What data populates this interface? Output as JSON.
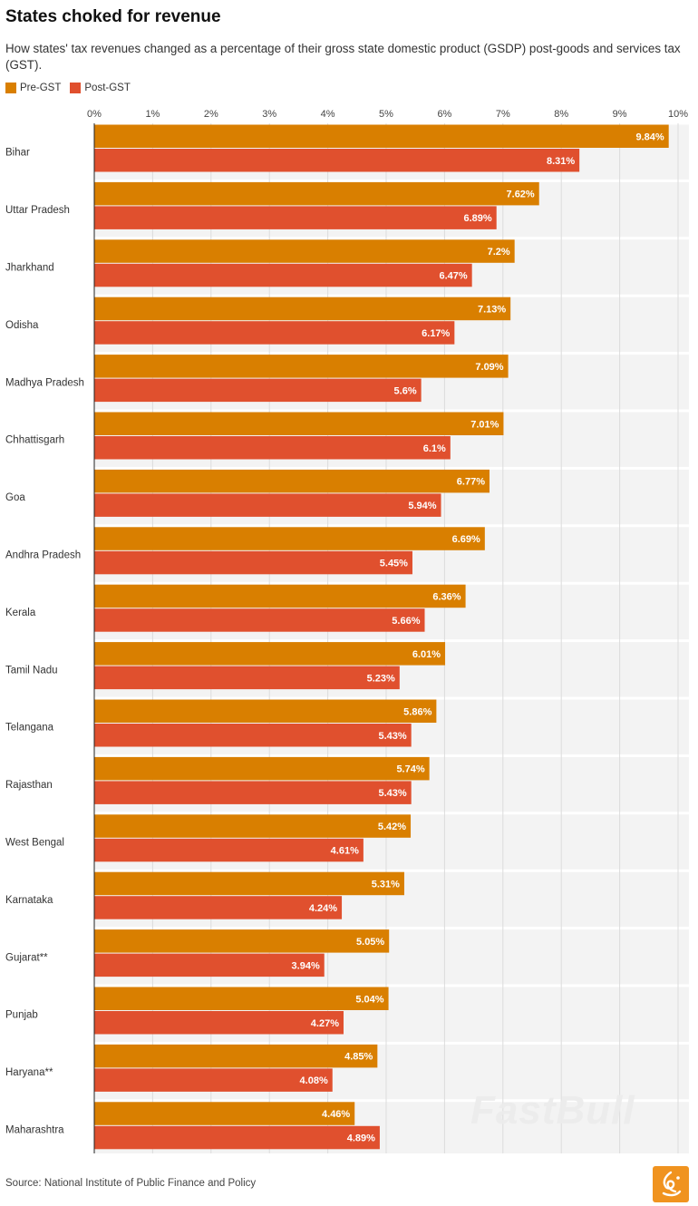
{
  "title": "States choked for revenue",
  "subtitle": "How states' tax revenues changed as a percentage of their gross state domestic product (GSDP) post-goods and services tax (GST).",
  "source": "Source: National Institute of Public Finance and Policy",
  "watermark": "FastBull",
  "colors": {
    "pre": "#d97f00",
    "post": "#e0502e",
    "band": "#f3f3f3",
    "grid": "#dcdcdc"
  },
  "chart_data": {
    "type": "bar",
    "orientation": "horizontal",
    "title": "States choked for revenue",
    "xlim": [
      0,
      10
    ],
    "ticks": [
      "0%",
      "1%",
      "2%",
      "3%",
      "4%",
      "5%",
      "6%",
      "7%",
      "8%",
      "9%",
      "10%"
    ],
    "legend_position": "top-left",
    "grid": true,
    "categories": [
      "Bihar",
      "Uttar Pradesh",
      "Jharkhand",
      "Odisha",
      "Madhya Pradesh",
      "Chhattisgarh",
      "Goa",
      "Andhra Pradesh",
      "Kerala",
      "Tamil Nadu",
      "Telangana",
      "Rajasthan",
      "West Bengal",
      "Karnataka",
      "Gujarat**",
      "Punjab",
      "Haryana**",
      "Maharashtra"
    ],
    "series": [
      {
        "name": "Pre-GST",
        "color": "#d97f00",
        "values": [
          9.84,
          7.62,
          7.2,
          7.13,
          7.09,
          7.01,
          6.77,
          6.69,
          6.36,
          6.01,
          5.86,
          5.74,
          5.42,
          5.31,
          5.05,
          5.04,
          4.85,
          4.46
        ],
        "labels": [
          "9.84%",
          "7.62%",
          "7.2%",
          "7.13%",
          "7.09%",
          "7.01%",
          "6.77%",
          "6.69%",
          "6.36%",
          "6.01%",
          "5.86%",
          "5.74%",
          "5.42%",
          "5.31%",
          "5.05%",
          "5.04%",
          "4.85%",
          "4.46%"
        ]
      },
      {
        "name": "Post-GST",
        "color": "#e0502e",
        "values": [
          8.31,
          6.89,
          6.47,
          6.17,
          5.6,
          6.1,
          5.94,
          5.45,
          5.66,
          5.23,
          5.43,
          5.43,
          4.61,
          4.24,
          3.94,
          4.27,
          4.08,
          4.89
        ],
        "labels": [
          "8.31%",
          "6.89%",
          "6.47%",
          "6.17%",
          "5.6%",
          "6.1%",
          "5.94%",
          "5.45%",
          "5.66%",
          "5.23%",
          "5.43%",
          "5.43%",
          "4.61%",
          "4.24%",
          "3.94%",
          "4.27%",
          "4.08%",
          "4.89%"
        ]
      }
    ]
  }
}
